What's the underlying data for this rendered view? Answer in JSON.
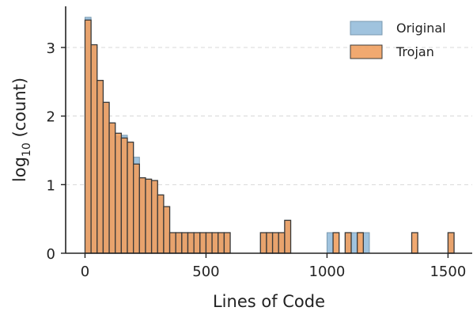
{
  "chart_data": {
    "type": "bar",
    "xlabel": "Lines of Code",
    "ylabel": "log10 (count)",
    "xlim": [
      -80,
      1600
    ],
    "ylim": [
      0,
      3.6
    ],
    "grid": "horizontal dashed",
    "legend_placement": "top-right",
    "x_ticks": [
      0,
      500,
      1000,
      1500
    ],
    "y_ticks": [
      0,
      1,
      2,
      3
    ],
    "bin_width": 25,
    "series": [
      {
        "name": "Original",
        "color": "#8fb9d8",
        "bins": [
          {
            "start": 0,
            "value": 3.44
          },
          {
            "start": 25,
            "value": 3.02
          },
          {
            "start": 50,
            "value": 2.52
          },
          {
            "start": 75,
            "value": 2.2
          },
          {
            "start": 100,
            "value": 1.9
          },
          {
            "start": 125,
            "value": 1.7
          },
          {
            "start": 150,
            "value": 1.72
          },
          {
            "start": 175,
            "value": 1.62
          },
          {
            "start": 200,
            "value": 1.4
          },
          {
            "start": 225,
            "value": 1.1
          },
          {
            "start": 250,
            "value": 1.08
          },
          {
            "start": 275,
            "value": 1.06
          },
          {
            "start": 300,
            "value": 0.85
          },
          {
            "start": 325,
            "value": 0.68
          },
          {
            "start": 350,
            "value": 0.3
          },
          {
            "start": 375,
            "value": 0.3
          },
          {
            "start": 400,
            "value": 0.3
          },
          {
            "start": 425,
            "value": 0.3
          },
          {
            "start": 450,
            "value": 0.3
          },
          {
            "start": 475,
            "value": 0.3
          },
          {
            "start": 500,
            "value": 0.3
          },
          {
            "start": 525,
            "value": 0.3
          },
          {
            "start": 550,
            "value": 0.3
          },
          {
            "start": 575,
            "value": 0.3
          },
          {
            "start": 725,
            "value": 0.3
          },
          {
            "start": 750,
            "value": 0.3
          },
          {
            "start": 775,
            "value": 0.3
          },
          {
            "start": 800,
            "value": 0.3
          },
          {
            "start": 825,
            "value": 0.48
          },
          {
            "start": 1000,
            "value": 0.3
          },
          {
            "start": 1075,
            "value": 0.3
          },
          {
            "start": 1100,
            "value": 0.3
          },
          {
            "start": 1150,
            "value": 0.3
          },
          {
            "start": 1500,
            "value": 0.3
          }
        ]
      },
      {
        "name": "Trojan",
        "color": "#f0a060",
        "bins": [
          {
            "start": 0,
            "value": 3.4
          },
          {
            "start": 25,
            "value": 3.04
          },
          {
            "start": 50,
            "value": 2.52
          },
          {
            "start": 75,
            "value": 2.2
          },
          {
            "start": 100,
            "value": 1.9
          },
          {
            "start": 125,
            "value": 1.75
          },
          {
            "start": 150,
            "value": 1.68
          },
          {
            "start": 175,
            "value": 1.62
          },
          {
            "start": 200,
            "value": 1.3
          },
          {
            "start": 225,
            "value": 1.1
          },
          {
            "start": 250,
            "value": 1.08
          },
          {
            "start": 275,
            "value": 1.06
          },
          {
            "start": 300,
            "value": 0.85
          },
          {
            "start": 325,
            "value": 0.68
          },
          {
            "start": 350,
            "value": 0.3
          },
          {
            "start": 375,
            "value": 0.3
          },
          {
            "start": 400,
            "value": 0.3
          },
          {
            "start": 425,
            "value": 0.3
          },
          {
            "start": 450,
            "value": 0.3
          },
          {
            "start": 475,
            "value": 0.3
          },
          {
            "start": 500,
            "value": 0.3
          },
          {
            "start": 525,
            "value": 0.3
          },
          {
            "start": 550,
            "value": 0.3
          },
          {
            "start": 575,
            "value": 0.3
          },
          {
            "start": 725,
            "value": 0.3
          },
          {
            "start": 750,
            "value": 0.3
          },
          {
            "start": 775,
            "value": 0.3
          },
          {
            "start": 800,
            "value": 0.3
          },
          {
            "start": 825,
            "value": 0.48
          },
          {
            "start": 1025,
            "value": 0.3
          },
          {
            "start": 1075,
            "value": 0.3
          },
          {
            "start": 1125,
            "value": 0.3
          },
          {
            "start": 1350,
            "value": 0.3
          },
          {
            "start": 1500,
            "value": 0.3
          }
        ]
      }
    ]
  }
}
